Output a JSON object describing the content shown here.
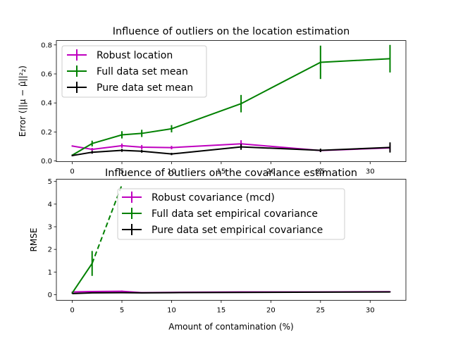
{
  "chart_data": [
    {
      "type": "line",
      "title": "Influence of outliers on the location estimation",
      "xlabel": "",
      "ylabel": "Error (||μ − μ̂||²₂)",
      "xlim": [
        -1.6,
        33.6
      ],
      "ylim": [
        -0.005,
        0.83
      ],
      "xticks": [
        0,
        5,
        10,
        15,
        20,
        25,
        30
      ],
      "yticks": [
        0.0,
        0.2,
        0.4,
        0.6,
        0.8
      ],
      "ytick_labels": [
        "0.0",
        "0.2",
        "0.4",
        "0.6",
        "0.8"
      ],
      "grid": false,
      "legend_position": "upper-left",
      "series": [
        {
          "name": "Robust location",
          "color": "#bf00bf",
          "x": [
            0,
            2,
            5,
            7,
            10,
            17,
            25,
            32
          ],
          "y": [
            0.103,
            0.08,
            0.105,
            0.095,
            0.092,
            0.118,
            0.072,
            0.09
          ],
          "err": [
            0.005,
            0.01,
            0.015,
            0.015,
            0.012,
            0.025,
            0.008,
            0.02
          ]
        },
        {
          "name": "Full data set mean",
          "color": "#008000",
          "x": [
            0,
            2,
            5,
            7,
            10,
            17,
            25,
            32
          ],
          "y": [
            0.04,
            0.12,
            0.18,
            0.19,
            0.222,
            0.395,
            0.68,
            0.705
          ],
          "err": [
            0.005,
            0.02,
            0.025,
            0.025,
            0.025,
            0.06,
            0.115,
            0.095
          ]
        },
        {
          "name": "Pure data set mean",
          "color": "#000000",
          "x": [
            0,
            2,
            5,
            7,
            10,
            17,
            25,
            32
          ],
          "y": [
            0.037,
            0.06,
            0.073,
            0.067,
            0.048,
            0.097,
            0.073,
            0.093
          ],
          "err": [
            0.005,
            0.01,
            0.01,
            0.01,
            0.008,
            0.02,
            0.012,
            0.035
          ]
        }
      ]
    },
    {
      "type": "line",
      "title": "Influence of outliers on the covariance estimation",
      "xlabel": "Amount of contamination (%)",
      "ylabel": "RMSE",
      "xlim": [
        -1.6,
        33.6
      ],
      "ylim": [
        -0.25,
        5.1
      ],
      "xticks": [
        0,
        5,
        10,
        15,
        20,
        25,
        30
      ],
      "yticks": [
        0,
        1,
        2,
        3,
        4,
        5
      ],
      "ytick_labels": [
        "0",
        "1",
        "2",
        "3",
        "4",
        "5"
      ],
      "grid": false,
      "legend_position": "upper-center",
      "series": [
        {
          "name": "Robust covariance (mcd)",
          "color": "#bf00bf",
          "x": [
            0,
            2,
            5,
            7,
            10,
            17,
            25,
            32
          ],
          "y": [
            0.12,
            0.14,
            0.15,
            0.09,
            0.1,
            0.12,
            0.12,
            0.13
          ],
          "err": [
            0.02,
            0.02,
            0.03,
            0.02,
            0.02,
            0.02,
            0.02,
            0.02
          ]
        },
        {
          "name": "Full data set empirical covariance",
          "color": "#008000",
          "x": [
            0,
            2
          ],
          "y": [
            0.08,
            1.38
          ],
          "err": [
            0.02,
            0.55
          ],
          "dashed_extension": {
            "x": [
              2,
              5
            ],
            "y": [
              1.38,
              4.85
            ]
          }
        },
        {
          "name": "Pure data set empirical covariance",
          "color": "#000000",
          "x": [
            0,
            2,
            5,
            7,
            10,
            17,
            25,
            32
          ],
          "y": [
            0.05,
            0.08,
            0.09,
            0.08,
            0.09,
            0.1,
            0.11,
            0.12
          ],
          "err": [
            0.01,
            0.01,
            0.01,
            0.01,
            0.01,
            0.01,
            0.01,
            0.02
          ]
        }
      ]
    }
  ]
}
